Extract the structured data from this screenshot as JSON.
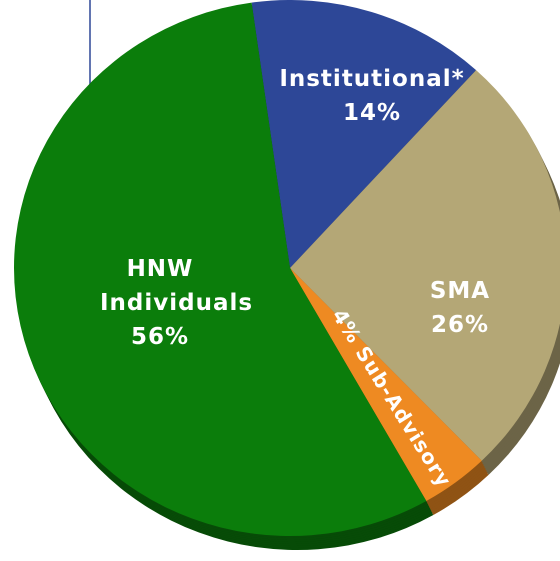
{
  "chart_data": {
    "type": "pie",
    "categories": [
      "Institutional*",
      "SMA",
      "Sub-Advisory",
      "HNW Individuals"
    ],
    "values": [
      14,
      26,
      4,
      56
    ],
    "value_labels": [
      "14%",
      "26%",
      "4%",
      "56%"
    ],
    "colors": [
      "#2d4797",
      "#b4a776",
      "#ee8a22",
      "#0b7d0b"
    ]
  }
}
